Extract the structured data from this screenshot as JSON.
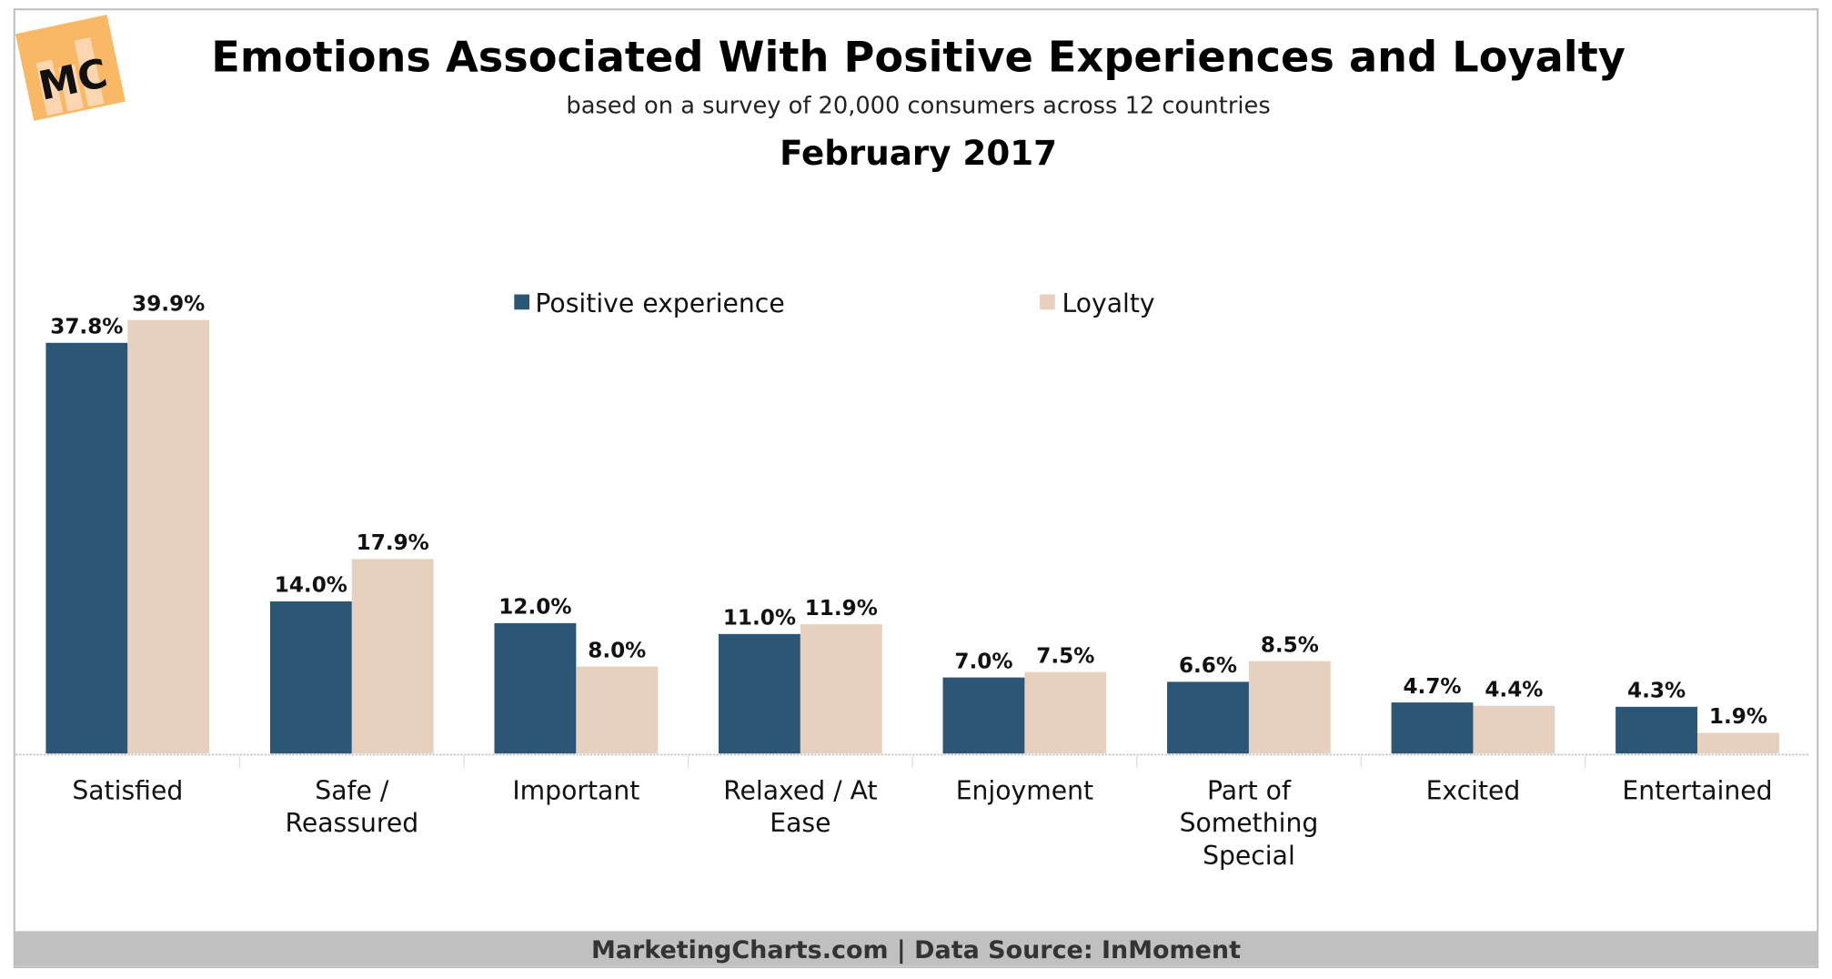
{
  "header": {
    "logo_text": "MC",
    "title": "Emotions Associated With Positive Experiences and Loyalty",
    "subtitle": "based on a survey of 20,000 consumers across 12 countries",
    "date": "February 2017"
  },
  "footer": {
    "text": "MarketingCharts.com | Data Source: InMoment"
  },
  "colors": {
    "positive": "#2c5676",
    "loyalty": "#e8d0be",
    "footer_bg": "#c0c0c0",
    "logo": "#f9b865"
  },
  "chart_data": {
    "type": "bar",
    "title": "Emotions Associated With Positive Experiences and Loyalty",
    "subtitle": "based on a survey of 20,000 consumers across 12 countries",
    "categories": [
      [
        "Satisfied"
      ],
      [
        "Safe /",
        "Reassured"
      ],
      [
        "Important"
      ],
      [
        "Relaxed / At",
        "Ease"
      ],
      [
        "Enjoyment"
      ],
      [
        "Part of",
        "Something",
        "Special"
      ],
      [
        "Excited"
      ],
      [
        "Entertained"
      ]
    ],
    "series": [
      {
        "name": "Positive experience",
        "values": [
          37.8,
          14.0,
          12.0,
          11.0,
          7.0,
          6.6,
          4.7,
          4.3
        ],
        "labels": [
          "37.8%",
          "14.0%",
          "12.0%",
          "11.0%",
          "7.0%",
          "6.6%",
          "4.7%",
          "4.3%"
        ]
      },
      {
        "name": "Loyalty",
        "values": [
          39.9,
          17.9,
          8.0,
          11.9,
          7.5,
          8.5,
          4.4,
          1.9
        ],
        "labels": [
          "39.9%",
          "17.9%",
          "8.0%",
          "11.9%",
          "7.5%",
          "8.5%",
          "4.4%",
          "1.9%"
        ]
      }
    ],
    "unit": "%",
    "ylim": [
      0,
      40
    ],
    "grid": false,
    "legend": "top-center"
  }
}
